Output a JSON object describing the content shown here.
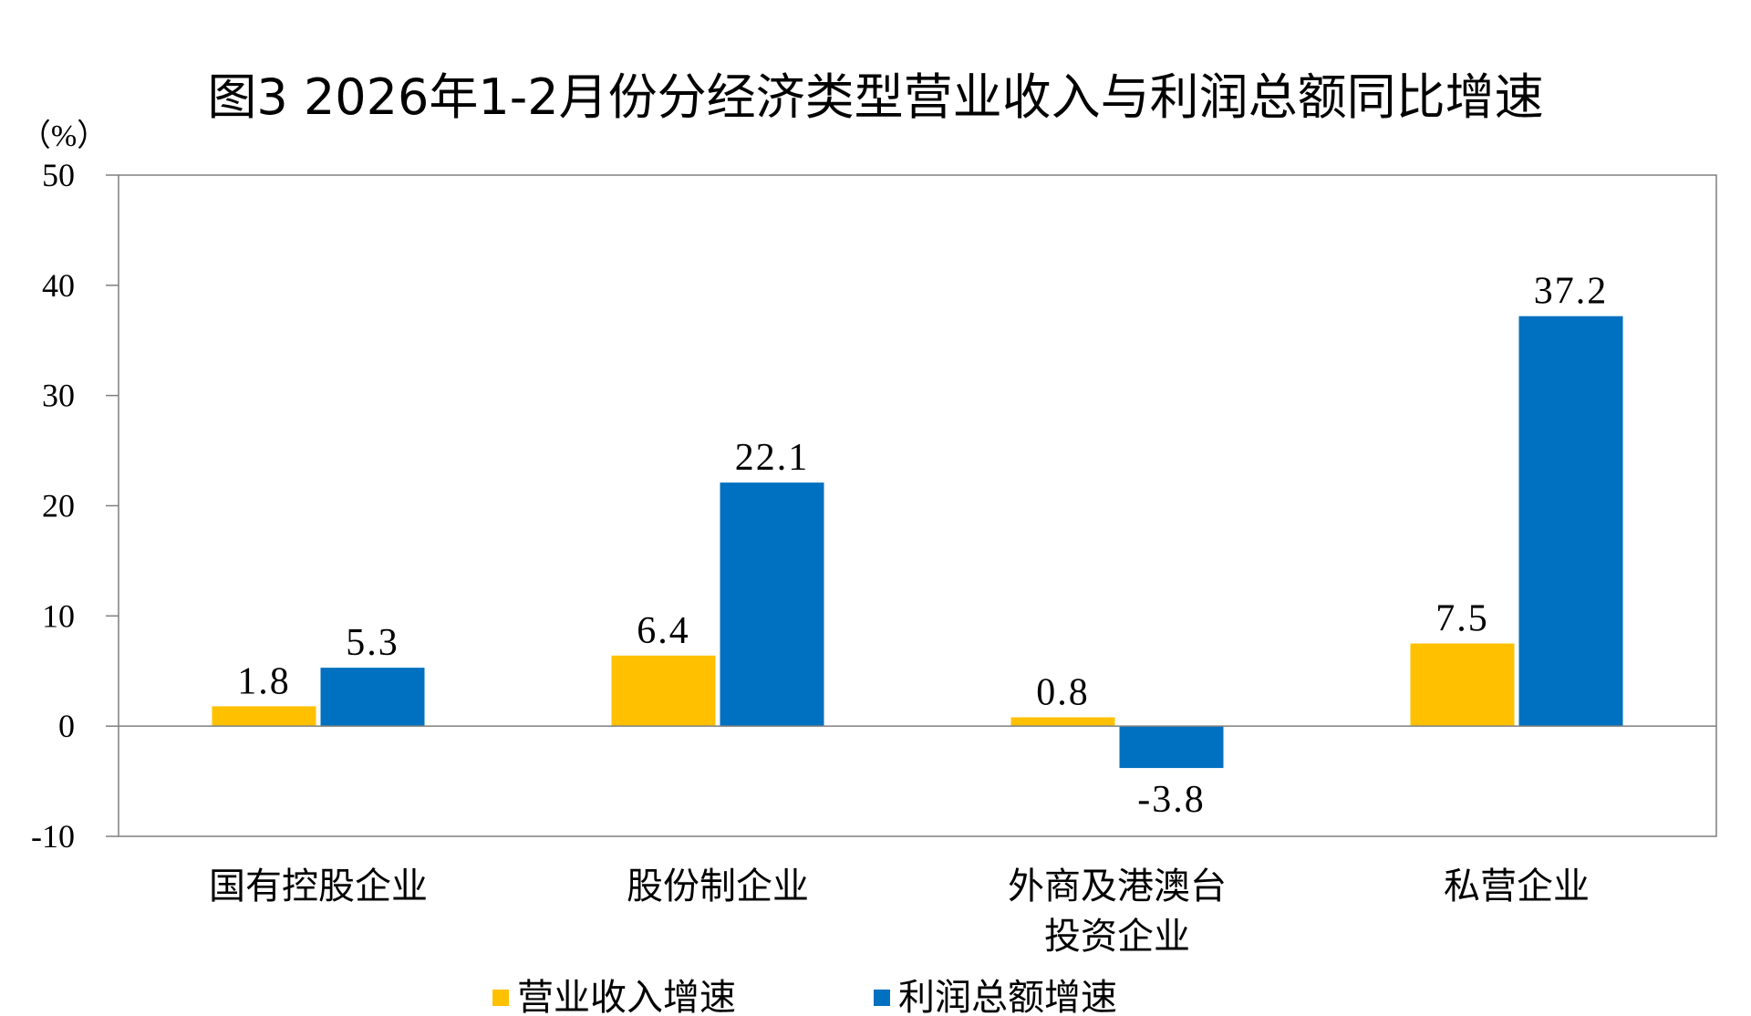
{
  "chart_data": {
    "type": "bar",
    "title": "图3 2026年1-2月份分经济类型营业收入与利润总额同比增速",
    "unit_label": "（%）",
    "ylim": [
      -10,
      50
    ],
    "yticks": [
      "50",
      "40",
      "30",
      "20",
      "10",
      "0",
      "-10"
    ],
    "ytick_values": [
      50,
      40,
      30,
      20,
      10,
      0,
      -10
    ],
    "categories": [
      [
        "国有控股企业"
      ],
      [
        "股份制企业"
      ],
      [
        "外商及港澳台",
        "投资企业"
      ],
      [
        "私营企业"
      ]
    ],
    "series": [
      {
        "name": "营业收入增速",
        "color": "#FFC000",
        "values": [
          1.8,
          6.4,
          0.8,
          7.5
        ],
        "labels": [
          "1.8",
          "6.4",
          "0.8",
          "7.5"
        ]
      },
      {
        "name": "利润总额增速",
        "color": "#0070C0",
        "values": [
          5.3,
          22.1,
          -3.8,
          37.2
        ],
        "labels": [
          "5.3",
          "22.1",
          "-3.8",
          "37.2"
        ]
      }
    ],
    "grid": false,
    "legend_position": "bottom-center"
  }
}
